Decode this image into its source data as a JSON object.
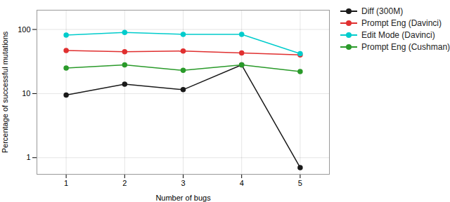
{
  "chart_data": {
    "type": "line",
    "x": [
      1,
      2,
      3,
      4,
      5
    ],
    "series": [
      {
        "name": "Diff (300M)",
        "color": "#1a1a1a",
        "marker": "circle",
        "values": [
          9.5,
          14.0,
          11.5,
          28.0,
          0.7
        ]
      },
      {
        "name": "Prompt Eng (Davinci)",
        "color": "#e03030",
        "marker": "circle",
        "values": [
          47.0,
          45.0,
          46.0,
          43.0,
          40.0
        ]
      },
      {
        "name": "Edit Mode (Davinci)",
        "color": "#00cccc",
        "marker": "circle",
        "values": [
          82.0,
          90.0,
          84.0,
          84.0,
          42.0
        ]
      },
      {
        "name": "Prompt Eng (Cushman)",
        "color": "#2a9a2a",
        "marker": "circle",
        "values": [
          25.0,
          28.0,
          23.0,
          28.0,
          22.0
        ]
      }
    ],
    "xlabel": "Number of bugs",
    "ylabel": "Percentage of successful mutations",
    "xlim": [
      0.5,
      5.5
    ],
    "xticks": [
      1,
      2,
      3,
      4,
      5
    ],
    "ylim": [
      0.55,
      200
    ],
    "yticks": [
      1,
      10,
      100
    ],
    "log": "y",
    "grid": true,
    "legend": "upper right"
  }
}
